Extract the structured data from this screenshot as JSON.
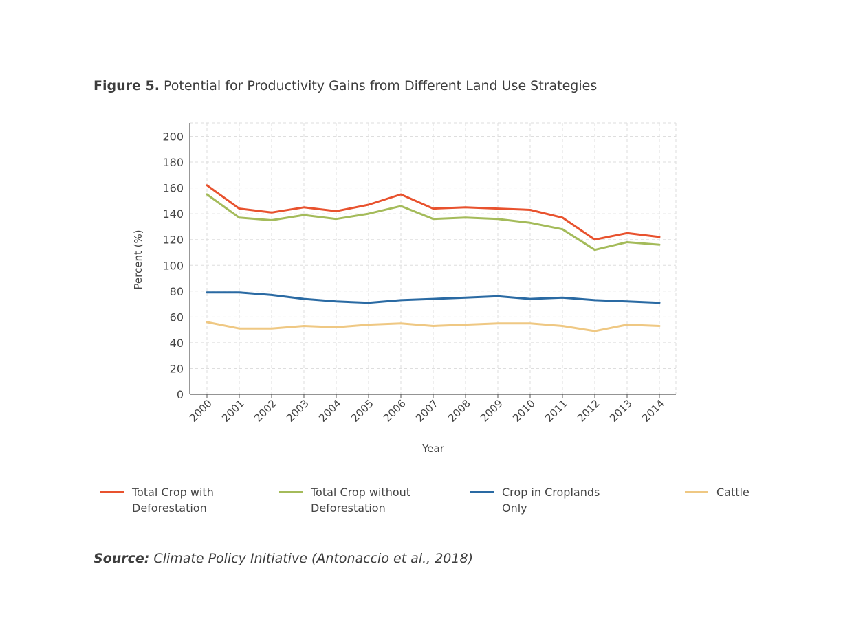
{
  "figure": {
    "label": "Figure 5.",
    "title": " Potential for Productivity Gains from Different Land Use Strategies"
  },
  "source": {
    "label": "Source:",
    "text": " Climate Policy Initiative (Antonaccio et al., 2018)"
  },
  "chart_data": {
    "type": "line",
    "xlabel": "Year",
    "ylabel": "Percent (%)",
    "ylim": [
      0,
      200
    ],
    "yticks": [
      0,
      20,
      40,
      60,
      80,
      100,
      120,
      140,
      160,
      180,
      200
    ],
    "grid": true,
    "legend_position": "bottom",
    "x": [
      "2000",
      "2001",
      "2002",
      "2003",
      "2004",
      "2005",
      "2006",
      "2007",
      "2008",
      "2009",
      "2010",
      "2011",
      "2012",
      "2013",
      "2014"
    ],
    "series": [
      {
        "name": "Total Crop with\nDeforestation",
        "color": "#e8522e",
        "values": [
          162,
          144,
          141,
          145,
          142,
          147,
          155,
          144,
          145,
          144,
          143,
          137,
          120,
          125,
          122
        ]
      },
      {
        "name": "Total Crop without\nDeforestation",
        "color": "#a4bb5a",
        "values": [
          155,
          137,
          135,
          139,
          136,
          140,
          146,
          136,
          137,
          136,
          133,
          128,
          112,
          118,
          116
        ]
      },
      {
        "name": "Crop in Croplands Only",
        "color": "#2a6aa3",
        "values": [
          79,
          79,
          77,
          74,
          72,
          71,
          73,
          74,
          75,
          76,
          74,
          75,
          73,
          72,
          71
        ]
      },
      {
        "name": "Cattle",
        "color": "#efc883",
        "values": [
          56,
          51,
          51,
          53,
          52,
          54,
          55,
          53,
          54,
          55,
          55,
          53,
          49,
          54,
          53
        ]
      }
    ]
  }
}
